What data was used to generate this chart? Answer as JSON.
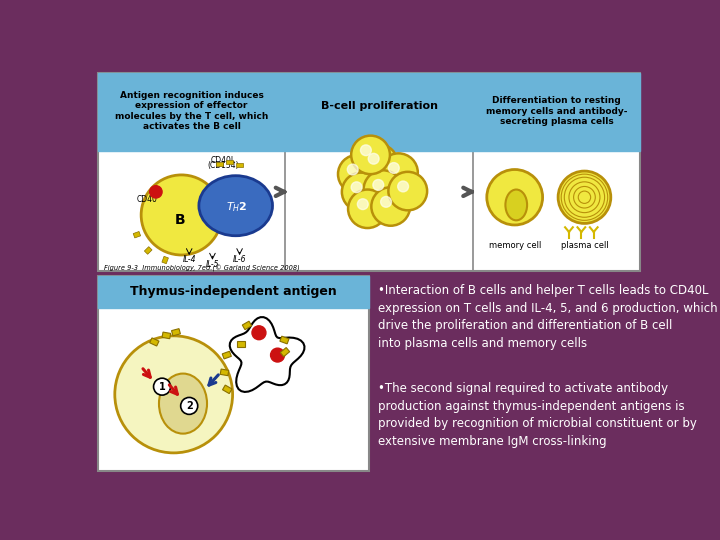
{
  "bg_color": "#6b2d5e",
  "hdr_color": "#6ab4d8",
  "panel_border": "#888888",
  "header1_text": "Antigen recognition induces\nexpression of effector\nmolecules by the T cell, which\nactivates the B cell",
  "header2_text": "B-cell proliferation",
  "header3_text": "Differentiation to resting\nmemory cells and antibody-\nsecreting plasma cells",
  "thymus_header_text": "Thymus-independent antigen",
  "bullet1": "•Interaction of B cells and helper T cells leads to CD40L expression on T cells and IL-4, 5, and 6 production, which drive the proliferation and differentiation of B cell into plasma cells and memory cells",
  "bullet2": "•The second signal required to activate antibody production against thymus-independent antigens is provided by recognition of microbial constituent or by extensive membrane IgM cross-linking",
  "figure_caption": "Figure 9-3  Immunobiology, 7ed.(© Garland Science 2008)",
  "cell_yellow": "#f0e840",
  "cell_yellow_light": "#f5f5c0",
  "cell_outline": "#b8900a",
  "th2_blue": "#3a6bbf",
  "red_color": "#cc1111",
  "gold_color": "#d4b800",
  "dark_blue": "#1a3a8f",
  "white": "#ffffff",
  "black": "#000000"
}
